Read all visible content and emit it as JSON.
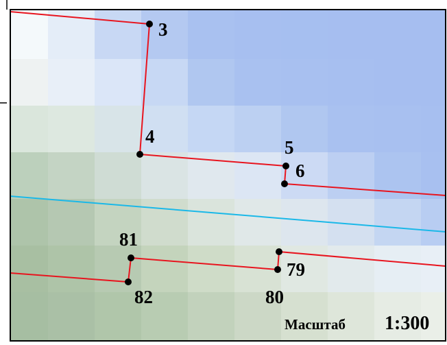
{
  "points": [
    {
      "label": "3"
    },
    {
      "label": "4"
    },
    {
      "label": "5"
    },
    {
      "label": "6"
    },
    {
      "label": "81"
    },
    {
      "label": "82"
    },
    {
      "label": "79"
    },
    {
      "label": "80"
    }
  ],
  "scale": {
    "caption": "Масштаб",
    "value": "1:300"
  }
}
